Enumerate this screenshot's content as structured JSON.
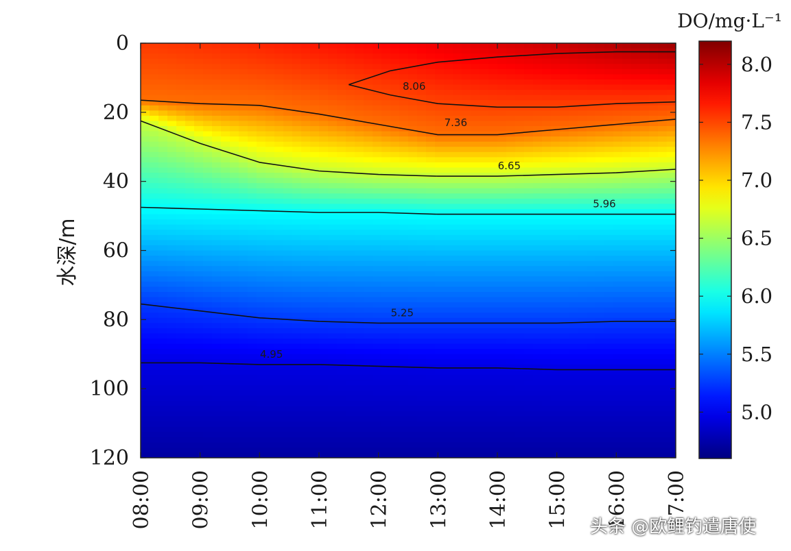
{
  "chart_data": {
    "type": "heatmap",
    "title": "",
    "xlabel": "",
    "ylabel": "水深/m",
    "x": [
      "08:00",
      "09:00",
      "10:00",
      "11:00",
      "12:00",
      "13:00",
      "14:00",
      "15:00",
      "16:00",
      "17:00"
    ],
    "y_ticks": [
      0,
      20,
      40,
      60,
      80,
      100,
      120
    ],
    "ylim": [
      0,
      120
    ],
    "y_inverted": true,
    "colorbar": {
      "title": "DO/mg·L⁻¹",
      "ticks": [
        8.0,
        7.5,
        7.0,
        6.5,
        6.0,
        5.5,
        5.0
      ],
      "tick_labels": [
        "8.0",
        "7.5",
        "7.0",
        "6.5",
        "6.0",
        "5.5",
        "5.0"
      ],
      "range": [
        4.6,
        8.2
      ],
      "colormap": "jet"
    },
    "contours": [
      {
        "level": 8.06,
        "label": "8.06",
        "depths": [
          null,
          null,
          null,
          null,
          null,
          null,
          null,
          null,
          null,
          null
        ],
        "closed_path": [
          [
            11.5,
            12
          ],
          [
            12.2,
            8
          ],
          [
            13,
            5.5
          ],
          [
            14,
            4
          ],
          [
            15,
            3
          ],
          [
            16,
            2.5
          ],
          [
            17,
            2.5
          ],
          [
            17,
            17
          ],
          [
            16,
            17.5
          ],
          [
            15,
            18.5
          ],
          [
            14,
            18.5
          ],
          [
            13,
            17.5
          ],
          [
            12.2,
            15
          ],
          [
            11.5,
            12
          ]
        ],
        "label_pos": [
          12.6,
          13.5
        ]
      },
      {
        "level": 7.36,
        "label": "7.36",
        "depths": [
          16.5,
          17.5,
          18,
          20.5,
          23.5,
          26.5,
          26.5,
          25,
          23.5,
          22
        ],
        "label_pos": [
          13.3,
          24
        ]
      },
      {
        "level": 6.65,
        "label": "6.65",
        "depths": [
          22.5,
          29,
          34.5,
          37,
          38,
          38.5,
          38.5,
          38,
          37.5,
          36.5
        ],
        "label_pos": [
          14.2,
          36.5
        ]
      },
      {
        "level": 5.96,
        "label": "5.96",
        "depths": [
          47.5,
          48,
          48.5,
          49,
          49,
          49.5,
          49.5,
          49.5,
          49.5,
          49.5
        ],
        "label_pos": [
          15.8,
          47.5
        ]
      },
      {
        "level": 5.25,
        "label": "5.25",
        "depths": [
          75.5,
          77.5,
          79.5,
          80.5,
          81,
          81,
          81,
          81,
          80.5,
          80.5
        ],
        "label_pos": [
          12.4,
          79
        ]
      },
      {
        "level": 4.95,
        "label": "4.95",
        "depths": [
          92.5,
          92.5,
          93,
          93,
          93.5,
          94,
          94,
          94.5,
          94.5,
          94.5
        ],
        "label_pos": [
          10.2,
          91
        ]
      }
    ]
  },
  "watermark": "头条 @欧鲤钓遣唐使"
}
